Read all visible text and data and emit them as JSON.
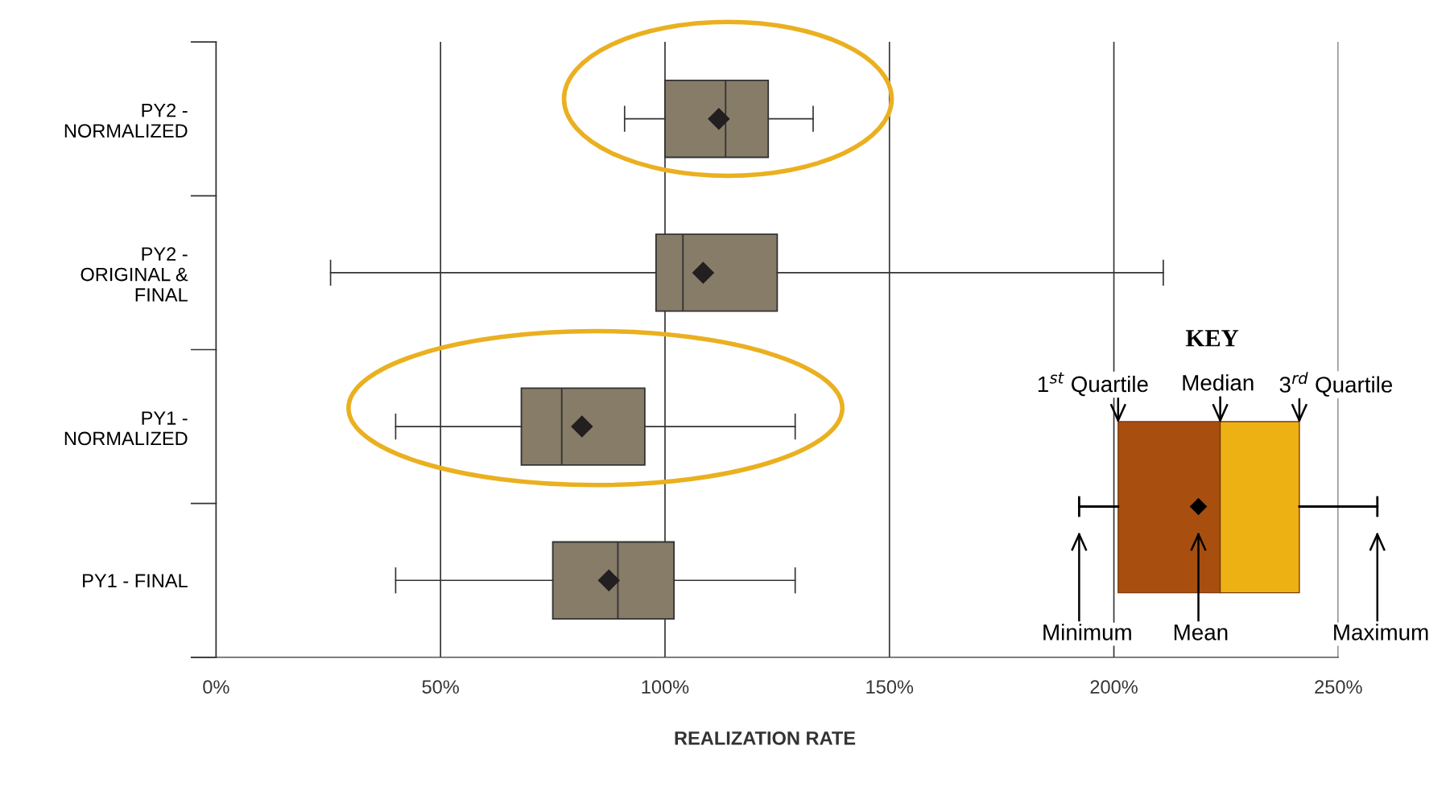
{
  "chart_data": {
    "type": "box",
    "orientation": "horizontal",
    "xlabel": "REALIZATION RATE",
    "categories": [
      "PY2 -\nNORMALIZED",
      "PY2 -\nORIGINAL &\nFINAL",
      "PY1 -\nNORMALIZED",
      "PY1 - FINAL"
    ],
    "color": "#877c68",
    "boxes": [
      {
        "low": 91,
        "q1": 100,
        "median": 113.5,
        "q3": 123,
        "high": 133,
        "mean": 112
      },
      {
        "low": 25.5,
        "q1": 98,
        "median": 104,
        "q3": 125,
        "high": 211,
        "mean": 108.5
      },
      {
        "low": 40,
        "q1": 68,
        "median": 77,
        "q3": 95.5,
        "high": 129,
        "mean": 81.5
      },
      {
        "low": 40,
        "q1": 75,
        "median": 89.5,
        "q3": 102,
        "high": 129,
        "mean": 87.5
      }
    ],
    "xlim": [
      -5.5,
      250
    ],
    "xticks": [
      {
        "value": 0,
        "label": "0%"
      },
      {
        "value": 50,
        "label": "50%"
      },
      {
        "value": 100,
        "label": "100%"
      },
      {
        "value": 150,
        "label": "150%"
      },
      {
        "value": 200,
        "label": "200%"
      },
      {
        "value": 250,
        "label": "250%"
      }
    ],
    "grid": "x",
    "annotations": [
      "KEY",
      "1$^{st}$ Quartile",
      "Median",
      "3$^{rd}$ Quartile",
      "Minimum",
      "Mean",
      "Maximum"
    ]
  }
}
